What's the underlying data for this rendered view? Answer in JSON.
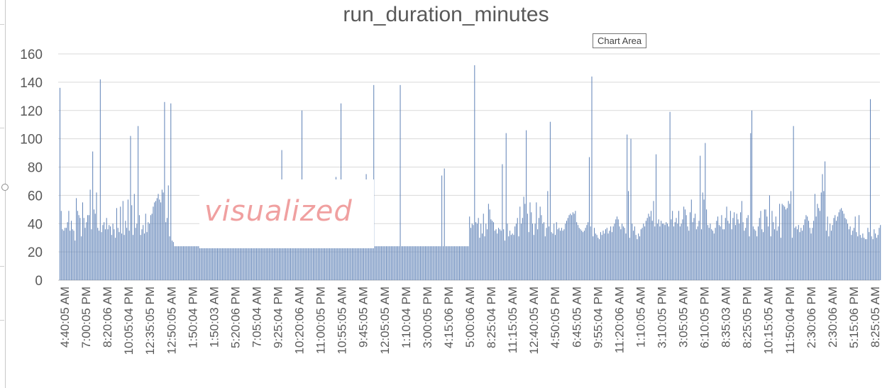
{
  "chart_data": {
    "type": "bar",
    "title": "run_duration_minutes",
    "ylim": [
      0,
      160
    ],
    "yticks": [
      0,
      20,
      40,
      60,
      80,
      100,
      120,
      140,
      160
    ],
    "grid": true,
    "legend": "none",
    "series_color": "#5b7fb5",
    "x_tick_labels": [
      "4:40:05 AM",
      "7:00:05 PM",
      "8:20:06 AM",
      "10:05:04 PM",
      "12:35:05 PM",
      "12:50:05 AM",
      "1:50:04 PM",
      "1:50:03 AM",
      "5:20:06 PM",
      "7:05:04 AM",
      "9:25:04 PM",
      "10:20:06 AM",
      "11:00:05 PM",
      "10:55:05 AM",
      "9:45:05 AM",
      "12:05:05 AM",
      "1:10:04 PM",
      "3:00:05 PM",
      "4:15:06 PM",
      "5:00:06 AM",
      "8:25:04 PM",
      "11:15:05 AM",
      "12:40:05 AM",
      "4:50:05 PM",
      "6:45:05 AM",
      "9:55:04 PM",
      "11:20:06 AM",
      "1:10:05 AM",
      "3:10:05 PM",
      "3:05:05 AM",
      "6:10:05 PM",
      "8:35:03 AM",
      "8:25:05 PM",
      "10:15:05 AM",
      "11:50:04 PM",
      "2:30:06 PM",
      "2:30:06 AM",
      "5:15:06 PM",
      "8:25:05 AM"
    ],
    "values": [
      136,
      49,
      36,
      35,
      37,
      37,
      41,
      49,
      35,
      42,
      36,
      35,
      28,
      58,
      49,
      46,
      44,
      31,
      55,
      44,
      37,
      41,
      46,
      46,
      64,
      36,
      91,
      50,
      47,
      62,
      37,
      35,
      142,
      34,
      39,
      41,
      36,
      44,
      36,
      39,
      38,
      32,
      40,
      36,
      30,
      51,
      37,
      34,
      52,
      33,
      56,
      32,
      42,
      37,
      57,
      35,
      102,
      53,
      32,
      61,
      37,
      40,
      109,
      46,
      32,
      36,
      39,
      33,
      47,
      34,
      41,
      40,
      46,
      47,
      52,
      55,
      56,
      58,
      61,
      57,
      55,
      64,
      62,
      126,
      41,
      44,
      67,
      31,
      125,
      28,
      27,
      24,
      24,
      24,
      24,
      24,
      24,
      24,
      24,
      24,
      24,
      24,
      24,
      24,
      24,
      24,
      24,
      24,
      24,
      24,
      24,
      24,
      24,
      24,
      24,
      24,
      24,
      24,
      24,
      24,
      24,
      24,
      24,
      24,
      24,
      24,
      24,
      24,
      24,
      24,
      24,
      24,
      24,
      24,
      24,
      24,
      24,
      24,
      24,
      24,
      24,
      24,
      24,
      24,
      24,
      24,
      24,
      24,
      24,
      24,
      24,
      24,
      24,
      24,
      24,
      24,
      24,
      24,
      24,
      24,
      24,
      24,
      24,
      24,
      24,
      24,
      24,
      24,
      24,
      24,
      24,
      24,
      24,
      24,
      24,
      24,
      92,
      24,
      24,
      24,
      24,
      24,
      24,
      24,
      24,
      24,
      24,
      24,
      24,
      24,
      24,
      24,
      120,
      24,
      24,
      24,
      24,
      24,
      24,
      24,
      24,
      24,
      24,
      24,
      24,
      24,
      24,
      24,
      24,
      24,
      24,
      24,
      24,
      24,
      24,
      24,
      24,
      24,
      24,
      73,
      24,
      24,
      24,
      125,
      24,
      24,
      24,
      24,
      24,
      24,
      24,
      24,
      24,
      24,
      24,
      24,
      24,
      24,
      24,
      24,
      24,
      24,
      24,
      75,
      24,
      24,
      24,
      24,
      24,
      138,
      24,
      24,
      24,
      24,
      24,
      24,
      24,
      24,
      24,
      24,
      24,
      24,
      24,
      24,
      24,
      24,
      24,
      24,
      24,
      24,
      138,
      24,
      24,
      24,
      24,
      24,
      24,
      24,
      24,
      24,
      24,
      24,
      24,
      24,
      24,
      24,
      24,
      24,
      24,
      24,
      24,
      24,
      24,
      24,
      24,
      24,
      24,
      24,
      24,
      24,
      24,
      24,
      24,
      74,
      24,
      79,
      24,
      24,
      24,
      24,
      24,
      24,
      24,
      24,
      24,
      24,
      24,
      24,
      24,
      24,
      24,
      24,
      24,
      24,
      24,
      45,
      37,
      40,
      39,
      152,
      41,
      40,
      44,
      30,
      40,
      33,
      47,
      31,
      40,
      36,
      54,
      50,
      43,
      42,
      41,
      35,
      36,
      33,
      37,
      36,
      35,
      82,
      36,
      28,
      104,
      40,
      31,
      35,
      32,
      33,
      32,
      38,
      40,
      44,
      31,
      52,
      40,
      44,
      59,
      54,
      106,
      47,
      34,
      55,
      48,
      40,
      32,
      40,
      55,
      36,
      44,
      52,
      46,
      40,
      41,
      31,
      37,
      63,
      38,
      112,
      34,
      33,
      40,
      32,
      41,
      36,
      37,
      35,
      37,
      35,
      36,
      40,
      42,
      44,
      46,
      47,
      46,
      48,
      47,
      49,
      41,
      39,
      37,
      36,
      35,
      34,
      35,
      37,
      39,
      41,
      87,
      38,
      144,
      31,
      37,
      33,
      32,
      30,
      29,
      34,
      32,
      35,
      33,
      36,
      37,
      33,
      35,
      38,
      34,
      38,
      40,
      43,
      45,
      43,
      38,
      36,
      40,
      38,
      37,
      33,
      103,
      63,
      30,
      100,
      40,
      35,
      38,
      32,
      29,
      33,
      31,
      36,
      37,
      40,
      38,
      42,
      44,
      47,
      45,
      49,
      42,
      56,
      38,
      89,
      40,
      43,
      38,
      42,
      40,
      40,
      39,
      41,
      40,
      38,
      119,
      43,
      49,
      38,
      41,
      44,
      40,
      49,
      38,
      40,
      43,
      52,
      50,
      46,
      38,
      35,
      48,
      57,
      41,
      44,
      47,
      36,
      38,
      42,
      88,
      36,
      62,
      57,
      97,
      50,
      39,
      37,
      40,
      36,
      35,
      33,
      37,
      42,
      45,
      39,
      38,
      46,
      36,
      36,
      44,
      52,
      42,
      40,
      49,
      36,
      44,
      48,
      39,
      47,
      43,
      40,
      48,
      56,
      41,
      35,
      37,
      44,
      46,
      31,
      104,
      120,
      38,
      36,
      35,
      31,
      38,
      44,
      49,
      36,
      34,
      50,
      50,
      45,
      38,
      60,
      31,
      49,
      41,
      36,
      45,
      35,
      38,
      54,
      30,
      54,
      53,
      52,
      50,
      51,
      56,
      54,
      63,
      30,
      109,
      37,
      38,
      36,
      39,
      34,
      37,
      35,
      39,
      43,
      46,
      45,
      42,
      37,
      33,
      37,
      42,
      61,
      45,
      54,
      51,
      49,
      62,
      75,
      63,
      84,
      35,
      45,
      31,
      40,
      35,
      39,
      44,
      46,
      42,
      45,
      48,
      50,
      51,
      49,
      47,
      44,
      43,
      40,
      36,
      38,
      32,
      35,
      37,
      45,
      34,
      31,
      46,
      32,
      30,
      33,
      30,
      29,
      29,
      37,
      34,
      128,
      31,
      29,
      36,
      33,
      30,
      32,
      37,
      39
    ]
  }
}
